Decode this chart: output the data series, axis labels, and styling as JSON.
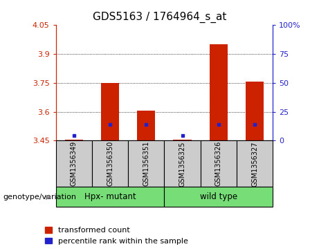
{
  "title": "GDS5163 / 1764964_s_at",
  "samples": [
    "GSM1356349",
    "GSM1356350",
    "GSM1356351",
    "GSM1356325",
    "GSM1356326",
    "GSM1356327"
  ],
  "red_values": [
    3.455,
    3.75,
    3.605,
    3.455,
    3.95,
    3.755
  ],
  "blue_values": [
    3.475,
    3.535,
    3.535,
    3.475,
    3.535,
    3.535
  ],
  "ylim_left": [
    3.45,
    4.05
  ],
  "yticks_left": [
    3.45,
    3.6,
    3.75,
    3.9,
    4.05
  ],
  "ytick_labels_left": [
    "3.45",
    "3.6",
    "3.75",
    "3.9",
    "4.05"
  ],
  "ylim_right": [
    0,
    100
  ],
  "yticks_right": [
    0,
    25,
    50,
    75,
    100
  ],
  "ytick_labels_right": [
    "0",
    "25",
    "50",
    "75",
    "100%"
  ],
  "group_label": "genotype/variation",
  "group1_label": "Hpx- mutant",
  "group2_label": "wild type",
  "group1_samples": [
    0,
    1,
    2
  ],
  "group2_samples": [
    3,
    4,
    5
  ],
  "green_color": "#77dd77",
  "bar_width": 0.5,
  "red_color": "#cc2200",
  "blue_color": "#2222cc",
  "bg_color": "#cccccc",
  "plot_bg": "#ffffff",
  "legend_red": "transformed count",
  "legend_blue": "percentile rank within the sample",
  "left_tick_color": "#cc2200",
  "right_tick_color": "#2222cc",
  "title_fontsize": 11,
  "tick_fontsize": 8,
  "label_fontsize": 7,
  "group_fontsize": 8.5,
  "legend_fontsize": 8
}
